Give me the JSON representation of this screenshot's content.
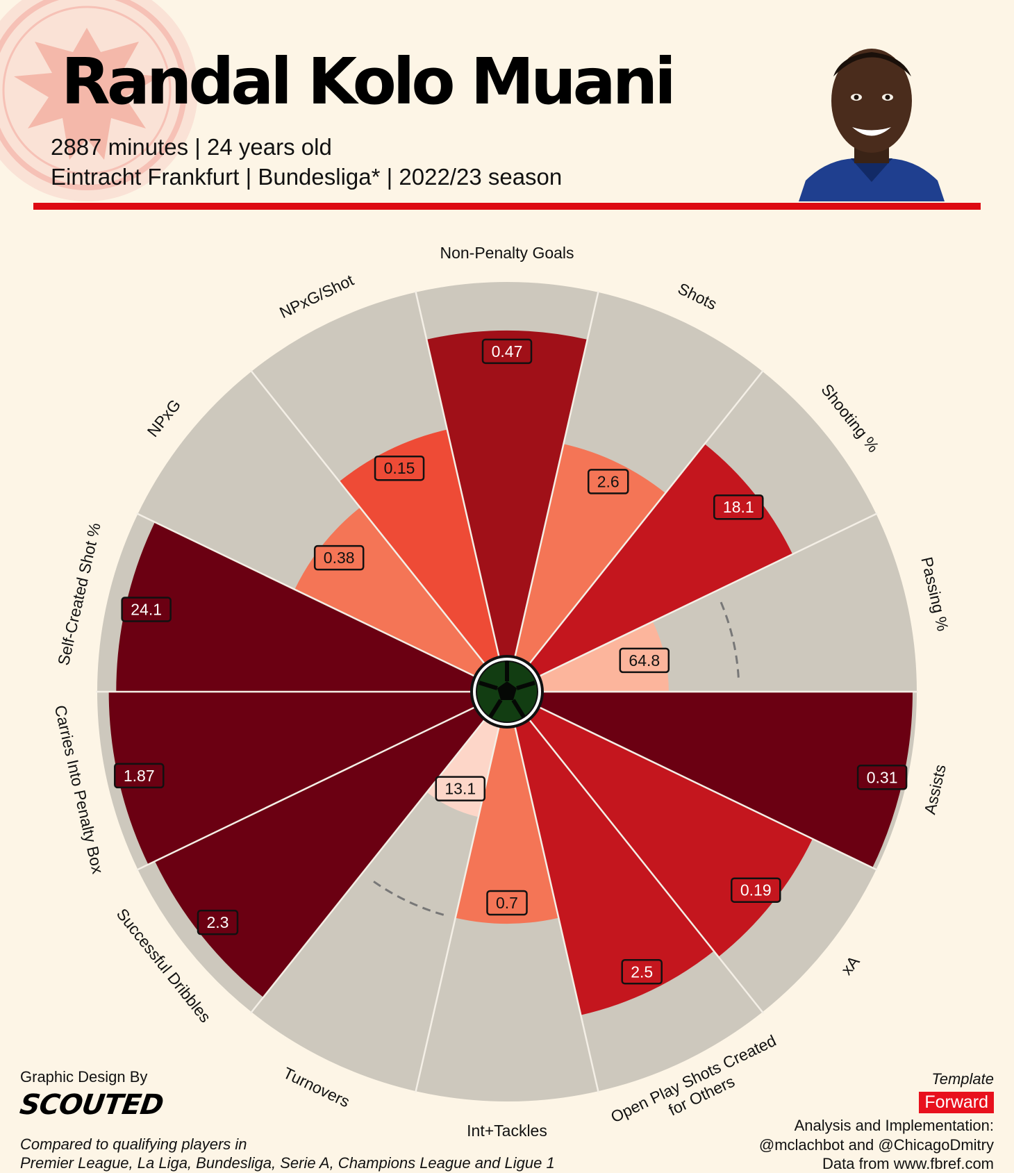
{
  "header": {
    "player_name": "Randal Kolo Muani",
    "subtitle_line1": "2887 minutes | 24 years old",
    "subtitle_line2": "Eintracht Frankfurt | Bundesliga* | 2022/23 season",
    "crest_icon": "eagle-crest-icon",
    "photo_icon": "player-photo-icon",
    "accent_color": "#dd0a12"
  },
  "footer": {
    "design_by": "Graphic Design By",
    "brand": "SCOUTED",
    "compared_line1": "Compared to qualifying players in",
    "compared_line2": "Premier League, La Liga, Bundesliga, Serie A, Champions League and Ligue 1",
    "template_label": "Template",
    "template_value": "Forward",
    "credit_line1": "Analysis and Implementation:",
    "credit_line2": "@mclachbot and @ChicagoDmitry",
    "credit_line3": "Data from www.fbref.com"
  },
  "chart_data": {
    "type": "pizza",
    "scale": "percentile rank 0-100",
    "center_icon": "football-icon",
    "background_color": "#cdc8bd",
    "colors": {
      "high": "#6b0012",
      "mid": "#c4161e",
      "low": "#ee4b36",
      "lowest": "#fdd6c8"
    },
    "metrics": [
      {
        "name": "Non-Penalty Goals",
        "value": "0.47",
        "percentile": 88
      },
      {
        "name": "Shots",
        "value": "2.6",
        "percentile": 59
      },
      {
        "name": "Shooting %",
        "value": "18.1",
        "percentile": 76
      },
      {
        "name": "Passing %",
        "value": "64.8",
        "percentile": 34,
        "average_percentile": 53
      },
      {
        "name": "Assists",
        "value": "0.31",
        "percentile": 100
      },
      {
        "name": "xA",
        "value": "0.19",
        "percentile": 82
      },
      {
        "name": "Open Play Shots Created\nfor Others",
        "value": "2.5",
        "percentile": 80
      },
      {
        "name": "Int+Tackles",
        "value": "0.7",
        "percentile": 53
      },
      {
        "name": "Turnovers",
        "value": "13.1",
        "percentile": 25,
        "average_percentile": 53
      },
      {
        "name": "Successful Dribbles",
        "value": "2.3",
        "percentile": 96
      },
      {
        "name": "Carries Into Penalty Box",
        "value": "1.87",
        "percentile": 98
      },
      {
        "name": "Self-Created Shot %",
        "value": "24.1",
        "percentile": 96
      },
      {
        "name": "NPxG",
        "value": "0.38",
        "percentile": 54
      },
      {
        "name": "NPxG/Shot",
        "value": "0.15",
        "percentile": 63
      }
    ]
  }
}
